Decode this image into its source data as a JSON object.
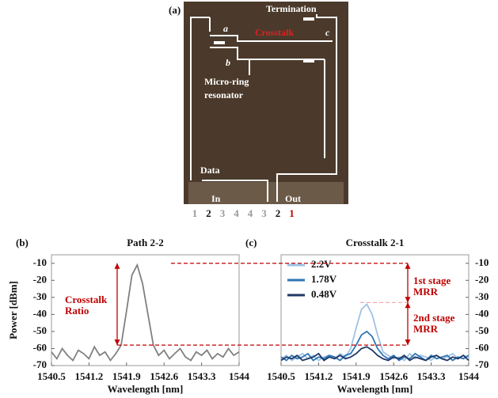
{
  "photo": {
    "panel_label": "(a)",
    "termination": "Termination",
    "crosstalk": "Crosstalk",
    "port_a": "a",
    "port_b": "b",
    "port_c": "c",
    "mrr_lines": [
      "Micro-ring",
      "resonator"
    ],
    "data": "Data",
    "in": "In",
    "out": "Out",
    "path_numbers": [
      "1",
      "2",
      "3",
      "4",
      "4",
      "3",
      "2",
      "1"
    ],
    "path_colors": [
      "#999999",
      "#111111",
      "#999999",
      "#999999",
      "#999999",
      "#999999",
      "#111111",
      "#c00000"
    ]
  },
  "chart_data": [
    {
      "type": "line",
      "panel_label": "(b)",
      "title": "Path 2-2",
      "y_label": "Power [dBm]",
      "x_label": "Wavelength [nm]",
      "xlim": [
        1540.5,
        1544
      ],
      "xticks": [
        1540.5,
        1541.2,
        1541.9,
        1542.6,
        1543.3,
        1544
      ],
      "ylim": [
        -70,
        -5
      ],
      "yticks": [
        -10,
        -20,
        -30,
        -40,
        -50,
        -60,
        -70
      ],
      "y_axis_side": "left",
      "x": [
        1540.5,
        1540.6,
        1540.7,
        1540.8,
        1540.9,
        1541.0,
        1541.1,
        1541.2,
        1541.3,
        1541.4,
        1541.5,
        1541.6,
        1541.7,
        1541.8,
        1541.9,
        1542.0,
        1542.1,
        1542.2,
        1542.3,
        1542.4,
        1542.5,
        1542.6,
        1542.7,
        1542.8,
        1542.9,
        1543.0,
        1543.1,
        1543.2,
        1543.3,
        1543.4,
        1543.5,
        1543.6,
        1543.7,
        1543.8,
        1543.9,
        1544.0
      ],
      "series": [
        {
          "name": "Path 2-2",
          "color": "#808080",
          "values": [
            -62,
            -66,
            -60,
            -64,
            -67,
            -61,
            -63,
            -66,
            -59,
            -64,
            -62,
            -67,
            -63,
            -58,
            -38,
            -17,
            -11,
            -22,
            -40,
            -58,
            -64,
            -61,
            -66,
            -63,
            -60,
            -65,
            -67,
            -62,
            -64,
            -61,
            -66,
            -63,
            -65,
            -60,
            -64,
            -62
          ]
        }
      ],
      "legend": false,
      "annotation_lines": [
        "Crosstalk",
        "Ratio"
      ],
      "hlines": [
        -10,
        -58
      ],
      "hline_color": "#c00000"
    },
    {
      "type": "line",
      "panel_label": "(c)",
      "title": "Crosstalk 2-1",
      "x_label": "Wavelength [nm]",
      "xlim": [
        1540.5,
        1544
      ],
      "xticks": [
        1540.5,
        1541.2,
        1541.9,
        1542.6,
        1543.3,
        1544
      ],
      "ylim": [
        -70,
        -5
      ],
      "yticks": [
        -10,
        -20,
        -30,
        -40,
        -50,
        -60,
        -70
      ],
      "y_axis_side": "right",
      "x": [
        1540.5,
        1540.6,
        1540.7,
        1540.8,
        1540.9,
        1541.0,
        1541.1,
        1541.2,
        1541.3,
        1541.4,
        1541.5,
        1541.6,
        1541.7,
        1541.8,
        1541.9,
        1542.0,
        1542.1,
        1542.2,
        1542.3,
        1542.4,
        1542.5,
        1542.6,
        1542.7,
        1542.8,
        1542.9,
        1543.0,
        1543.1,
        1543.2,
        1543.3,
        1543.4,
        1543.5,
        1543.6,
        1543.7,
        1543.8,
        1543.9,
        1544.0
      ],
      "series": [
        {
          "name": "2.2V",
          "color": "#9dc3e6",
          "values": [
            -66,
            -64,
            -67,
            -65,
            -63,
            -66,
            -64,
            -67,
            -65,
            -64,
            -66,
            -63,
            -65,
            -60,
            -48,
            -37,
            -34,
            -40,
            -52,
            -62,
            -64,
            -66,
            -65,
            -67,
            -63,
            -66,
            -64,
            -65,
            -67,
            -64,
            -66,
            -65,
            -63,
            -66,
            -64,
            -65
          ]
        },
        {
          "name": "1.78V",
          "color": "#2e75b6",
          "values": [
            -65,
            -67,
            -64,
            -66,
            -65,
            -63,
            -67,
            -65,
            -66,
            -64,
            -65,
            -67,
            -64,
            -63,
            -58,
            -52,
            -50,
            -53,
            -60,
            -64,
            -66,
            -64,
            -67,
            -65,
            -66,
            -63,
            -65,
            -67,
            -64,
            -66,
            -65,
            -64,
            -67,
            -65,
            -66,
            -64
          ]
        },
        {
          "name": "0.48V",
          "color": "#1f3864",
          "values": [
            -67,
            -65,
            -66,
            -64,
            -67,
            -66,
            -65,
            -63,
            -67,
            -65,
            -66,
            -64,
            -66,
            -65,
            -63,
            -60,
            -59,
            -61,
            -64,
            -66,
            -67,
            -65,
            -66,
            -64,
            -67,
            -65,
            -66,
            -67,
            -65,
            -64,
            -66,
            -67,
            -65,
            -66,
            -64,
            -67
          ]
        }
      ],
      "legend": true,
      "legend_position": "upper left",
      "annotations": [
        [
          "1st stage",
          "MRR"
        ],
        [
          "2nd stage",
          "MRR"
        ]
      ],
      "hlines": [
        -33
      ],
      "hline_color": "#f4a0a0"
    }
  ]
}
